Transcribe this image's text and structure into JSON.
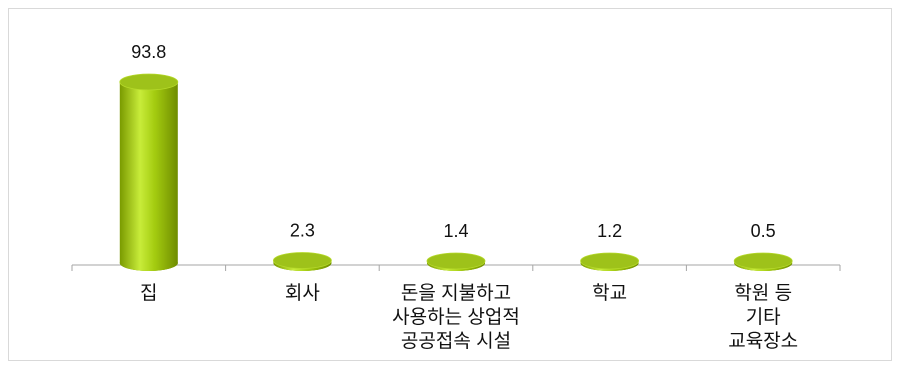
{
  "chart_data": {
    "type": "bar",
    "title": "",
    "xlabel": "",
    "ylabel": "",
    "ylim": [
      0,
      100
    ],
    "grid": false,
    "legend": "none",
    "categories": [
      [
        "집"
      ],
      [
        "회사"
      ],
      [
        "돈을 지불하고",
        "사용하는 상업적",
        "공공접속 시설"
      ],
      [
        "학교"
      ],
      [
        "학원 등",
        "기타",
        "교육장소"
      ]
    ],
    "values": [
      93.8,
      2.3,
      1.4,
      1.2,
      0.5
    ],
    "data_labels": [
      "93.8",
      "2.3",
      "1.4",
      "1.2",
      "0.5"
    ],
    "colors": {
      "bar_body_dark": "#7a9a00",
      "bar_body_light": "#c8ec3a",
      "bar_top": "#9ec21a",
      "axis": "#a6a6a6",
      "frame": "#d9d9d9"
    }
  }
}
